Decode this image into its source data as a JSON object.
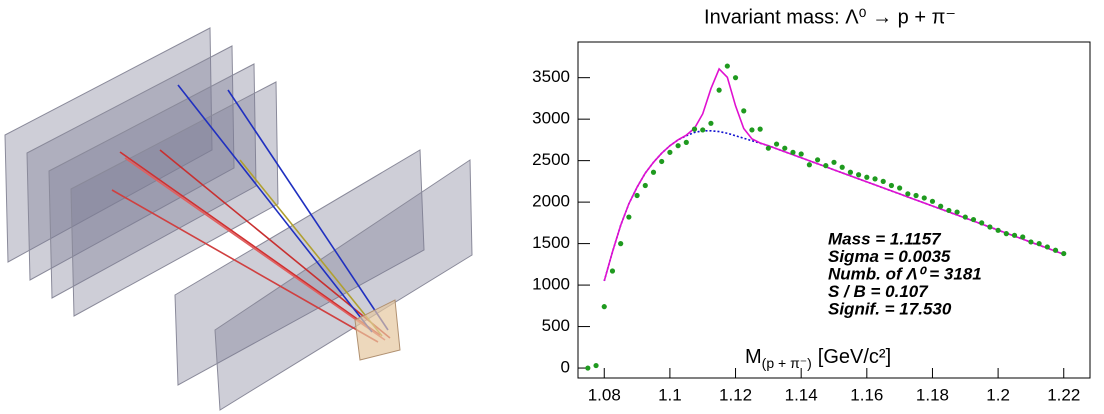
{
  "chart_data": {
    "type": "scatter",
    "title": "Invariant mass: Λ⁰ → p + π⁻",
    "xlabel": "M",
    "xlabel_sub": "(p + π⁻)",
    "xlabel_unit": "[GeV/c²]",
    "annotations": [
      "Mass = 1.1157",
      "Sigma = 0.0035",
      "Numb. of  Λ⁰  = 3181",
      "S / B = 0.107",
      "Signif. = 17.530"
    ],
    "x": [
      1.075,
      1.0775,
      1.08,
      1.0825,
      1.085,
      1.0875,
      1.09,
      1.0925,
      1.095,
      1.0975,
      1.1,
      1.1025,
      1.105,
      1.1075,
      1.11,
      1.1125,
      1.115,
      1.1175,
      1.12,
      1.1225,
      1.125,
      1.1275,
      1.13,
      1.1325,
      1.135,
      1.1375,
      1.14,
      1.1425,
      1.145,
      1.1475,
      1.15,
      1.1525,
      1.155,
      1.1575,
      1.16,
      1.1625,
      1.165,
      1.1675,
      1.17,
      1.1725,
      1.175,
      1.1775,
      1.18,
      1.1825,
      1.185,
      1.1875,
      1.19,
      1.1925,
      1.195,
      1.1975,
      1.2,
      1.2025,
      1.205,
      1.2075,
      1.21,
      1.2125,
      1.215,
      1.2175,
      1.22
    ],
    "series": [
      {
        "color": "#1f9a1f",
        "values": [
          0,
          30,
          740,
          1170,
          1500,
          1820,
          2080,
          2200,
          2360,
          2490,
          2600,
          2680,
          2720,
          2880,
          2870,
          2950,
          3350,
          3640,
          3500,
          3100,
          2870,
          2880,
          2650,
          2700,
          2650,
          2600,
          2580,
          2450,
          2510,
          2440,
          2480,
          2420,
          2360,
          2330,
          2300,
          2280,
          2250,
          2200,
          2170,
          2100,
          2080,
          2050,
          2010,
          1950,
          1900,
          1880,
          1820,
          1790,
          1750,
          1700,
          1660,
          1620,
          1600,
          1580,
          1520,
          1500,
          1460,
          1420,
          1380
        ]
      }
    ],
    "fit": {
      "x": [
        1.08,
        1.0825,
        1.085,
        1.0875,
        1.09,
        1.0925,
        1.095,
        1.0975,
        1.1,
        1.1025,
        1.105,
        1.1075,
        1.11,
        1.1125,
        1.115,
        1.1175,
        1.12,
        1.1225,
        1.125,
        1.1275,
        1.13,
        1.1325,
        1.135,
        1.1375,
        1.14,
        1.1425,
        1.145,
        1.1475,
        1.15,
        1.1525,
        1.155,
        1.1575,
        1.16,
        1.1625,
        1.165,
        1.1675,
        1.17,
        1.1725,
        1.175,
        1.1775,
        1.18,
        1.1825,
        1.185,
        1.1875,
        1.19,
        1.1925,
        1.195,
        1.1975,
        1.2,
        1.2025,
        1.205,
        1.2075,
        1.21,
        1.2125,
        1.215,
        1.2175,
        1.22
      ],
      "total": [
        1050,
        1400,
        1720,
        1980,
        2180,
        2350,
        2480,
        2590,
        2680,
        2751,
        2807,
        2890,
        3064,
        3367,
        3605,
        3505,
        3161,
        2887,
        2762,
        2713,
        2680,
        2644,
        2607,
        2571,
        2535,
        2498,
        2462,
        2426,
        2389,
        2353,
        2317,
        2280,
        2244,
        2208,
        2171,
        2135,
        2099,
        2062,
        2026,
        1990,
        1953,
        1917,
        1881,
        1844,
        1808,
        1772,
        1735,
        1699,
        1663,
        1626,
        1590,
        1554,
        1517,
        1481,
        1445,
        1408,
        1372
      ],
      "background": [
        1050,
        1400,
        1720,
        1980,
        2180,
        2350,
        2480,
        2590,
        2680,
        2750,
        2800,
        2840,
        2860,
        2860,
        2850,
        2830,
        2800,
        2770,
        2740,
        2710,
        2680,
        2644,
        2607,
        2571,
        2535,
        2498,
        2462,
        2426,
        2389,
        2353,
        2317,
        2280,
        2244,
        2208,
        2171,
        2135,
        2099,
        2062,
        2026,
        1990,
        1953,
        1917,
        1881,
        1844,
        1808,
        1772,
        1735,
        1699,
        1663,
        1626,
        1590,
        1554,
        1517,
        1481,
        1445,
        1408,
        1372
      ],
      "total_color": "#e010d0",
      "background_color": "#1010d0"
    },
    "xlim": [
      1.072,
      1.228
    ],
    "ylim": [
      -120,
      3930
    ],
    "xticks": [
      1.08,
      1.1,
      1.12,
      1.14,
      1.16,
      1.18,
      1.2,
      1.22
    ],
    "yticks": [
      0,
      500,
      1000,
      1500,
      2000,
      2500,
      3000,
      3500
    ]
  }
}
